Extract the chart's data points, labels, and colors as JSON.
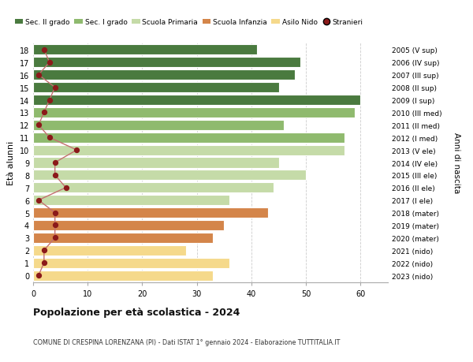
{
  "ages": [
    0,
    1,
    2,
    3,
    4,
    5,
    6,
    7,
    8,
    9,
    10,
    11,
    12,
    13,
    14,
    15,
    16,
    17,
    18
  ],
  "bar_values": [
    33,
    36,
    28,
    33,
    35,
    43,
    36,
    44,
    50,
    45,
    57,
    57,
    46,
    59,
    60,
    45,
    48,
    49,
    41
  ],
  "stranieri": [
    1,
    2,
    2,
    4,
    4,
    4,
    1,
    6,
    4,
    4,
    8,
    3,
    1,
    2,
    3,
    4,
    1,
    3,
    2
  ],
  "right_labels": [
    "2023 (nido)",
    "2022 (nido)",
    "2021 (nido)",
    "2020 (mater)",
    "2019 (mater)",
    "2018 (mater)",
    "2017 (I ele)",
    "2016 (II ele)",
    "2015 (III ele)",
    "2014 (IV ele)",
    "2013 (V ele)",
    "2012 (I med)",
    "2011 (II med)",
    "2010 (III med)",
    "2009 (I sup)",
    "2008 (II sup)",
    "2007 (III sup)",
    "2006 (IV sup)",
    "2005 (V sup)"
  ],
  "bar_colors": [
    "#f5d98b",
    "#f5d98b",
    "#f5d98b",
    "#d4854a",
    "#d4854a",
    "#d4854a",
    "#c5dba8",
    "#c5dba8",
    "#c5dba8",
    "#c5dba8",
    "#c5dba8",
    "#8fba6e",
    "#8fba6e",
    "#8fba6e",
    "#4a7a3f",
    "#4a7a3f",
    "#4a7a3f",
    "#4a7a3f",
    "#4a7a3f"
  ],
  "legend_labels": [
    "Sec. II grado",
    "Sec. I grado",
    "Scuola Primaria",
    "Scuola Infanzia",
    "Asilo Nido",
    "Stranieri"
  ],
  "legend_colors": [
    "#4a7a3f",
    "#8fba6e",
    "#c5dba8",
    "#d4854a",
    "#f5d98b",
    "#8b1a1a"
  ],
  "title": "Popolazione per età scolastica - 2024",
  "subtitle": "COMUNE DI CRESPINA LORENZANA (PI) - Dati ISTAT 1° gennaio 2024 - Elaborazione TUTTITALIA.IT",
  "ylabel_text": "Età alunni",
  "right_axis_label": "Anni di nascita",
  "xlim": [
    0,
    65
  ],
  "xticks": [
    0,
    10,
    20,
    30,
    40,
    50,
    60
  ],
  "bg_color": "#ffffff",
  "plot_bg_color": "#ffffff",
  "stranieri_color": "#8b1a1a",
  "stranieri_line_color": "#c47070",
  "grid_color": "#cccccc"
}
